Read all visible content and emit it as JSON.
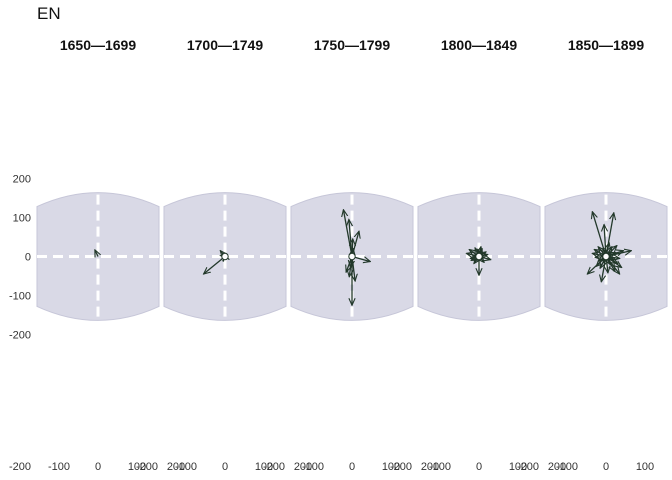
{
  "figure": {
    "title": "EN"
  },
  "chart_data": [
    {
      "type": "scatter",
      "title": "1650—1699",
      "xlim": [
        -200,
        200
      ],
      "ylim": [
        -200,
        200
      ],
      "x_ticks": [
        "-200",
        "-100",
        "0",
        "100",
        "200"
      ],
      "y_ticks": [
        "200",
        "100",
        "0",
        "-100",
        "-200"
      ],
      "arrows": [
        [
          -8,
          17
        ]
      ],
      "origin_point": false
    },
    {
      "type": "scatter",
      "title": "1700—1749",
      "xlim": [
        -200,
        200
      ],
      "ylim": [
        -200,
        200
      ],
      "x_ticks": [
        "-200",
        "-100",
        "0",
        "100",
        "200"
      ],
      "arrows": [
        [
          -55,
          -45
        ],
        [
          -12,
          15
        ],
        [
          6,
          3
        ],
        [
          -2,
          6
        ]
      ],
      "origin_point": true
    },
    {
      "type": "scatter",
      "title": "1750—1799",
      "xlim": [
        -200,
        200
      ],
      "ylim": [
        -200,
        200
      ],
      "x_ticks": [
        "-200",
        "-100",
        "0",
        "100",
        "200"
      ],
      "arrows": [
        [
          -22,
          120
        ],
        [
          -8,
          95
        ],
        [
          18,
          65
        ],
        [
          2,
          45
        ],
        [
          0,
          -125
        ],
        [
          8,
          -63
        ],
        [
          47,
          -13
        ],
        [
          -15,
          -40
        ],
        [
          -7,
          -52
        ],
        [
          -4,
          -28
        ],
        [
          3,
          20
        ]
      ],
      "origin_point": true
    },
    {
      "type": "scatter",
      "title": "1800—1849",
      "xlim": [
        -200,
        200
      ],
      "ylim": [
        -200,
        200
      ],
      "x_ticks": [
        "-200",
        "-100",
        "0",
        "100",
        "200"
      ],
      "arrows": [
        [
          -32,
          8
        ],
        [
          -25,
          18
        ],
        [
          -20,
          -10
        ],
        [
          -10,
          22
        ],
        [
          8,
          20
        ],
        [
          18,
          12
        ],
        [
          30,
          -8
        ],
        [
          0,
          -48
        ],
        [
          -13,
          -18
        ],
        [
          13,
          -15
        ],
        [
          22,
          5
        ],
        [
          -22,
          -5
        ],
        [
          -3,
          18
        ],
        [
          5,
          25
        ]
      ],
      "origin_point": true
    },
    {
      "type": "scatter",
      "title": "1850—1899",
      "xlim": [
        -200,
        200
      ],
      "ylim": [
        -200,
        200
      ],
      "x_ticks": [
        "-200",
        "-100",
        "0",
        "100",
        "200"
      ],
      "arrows": [
        [
          -35,
          115
        ],
        [
          20,
          112
        ],
        [
          -5,
          82
        ],
        [
          65,
          15
        ],
        [
          -48,
          -45
        ],
        [
          -12,
          -65
        ],
        [
          35,
          -45
        ],
        [
          23,
          -38
        ],
        [
          40,
          -28
        ],
        [
          -25,
          -25
        ],
        [
          -30,
          18
        ],
        [
          -20,
          25
        ],
        [
          8,
          35
        ],
        [
          28,
          28
        ],
        [
          45,
          15
        ],
        [
          -12,
          -10
        ],
        [
          10,
          -20
        ],
        [
          -20,
          -12
        ],
        [
          30,
          -18
        ],
        [
          -35,
          8
        ],
        [
          15,
          25
        ],
        [
          -8,
          20
        ],
        [
          5,
          -42
        ],
        [
          -15,
          -30
        ],
        [
          25,
          10
        ],
        [
          35,
          -5
        ],
        [
          -28,
          -2
        ],
        [
          12,
          12
        ],
        [
          -5,
          -15
        ],
        [
          20,
          -8
        ]
      ],
      "origin_point": true
    }
  ]
}
